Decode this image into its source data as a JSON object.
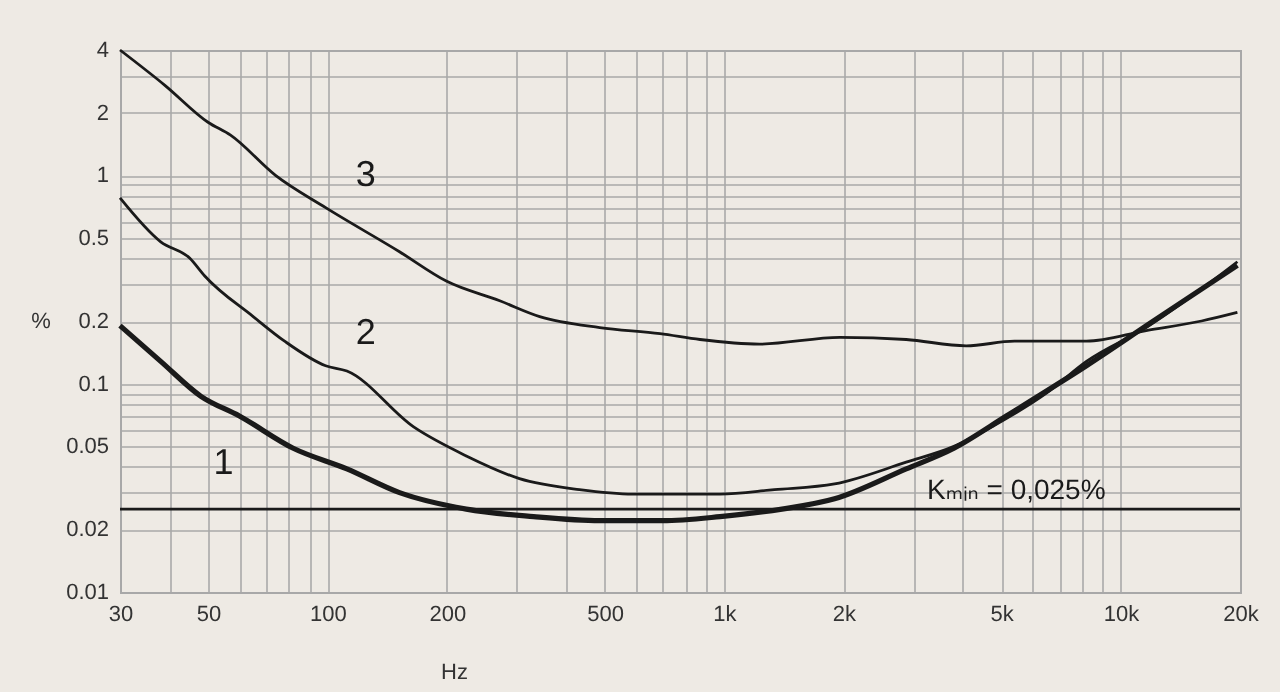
{
  "chart_data": {
    "type": "line",
    "xlabel": "Hz",
    "ylabel": "%",
    "log": "xy",
    "grid": true,
    "marker": "none",
    "line_style": "solid",
    "xlim": [
      30,
      20000
    ],
    "ylim": [
      0.01,
      4
    ],
    "xticks": [
      30,
      {
        "value": 40,
        "label": null
      },
      50,
      {
        "value": 60,
        "label": null
      },
      {
        "value": 70,
        "label": null
      },
      {
        "value": 80,
        "label": null
      },
      {
        "value": 90,
        "label": null
      },
      100,
      200,
      {
        "value": 300,
        "label": null
      },
      {
        "value": 400,
        "label": null
      },
      500,
      {
        "value": 600,
        "label": null
      },
      {
        "value": 700,
        "label": null
      },
      {
        "value": 800,
        "label": null
      },
      {
        "value": 900,
        "label": null
      },
      {
        "value": 1000,
        "label": "1k"
      },
      {
        "value": 2000,
        "label": "2k"
      },
      {
        "value": 3000,
        "label": null
      },
      {
        "value": 4000,
        "label": null
      },
      {
        "value": 5000,
        "label": "5k"
      },
      {
        "value": 6000,
        "label": null
      },
      {
        "value": 7000,
        "label": null
      },
      {
        "value": 8000,
        "label": null
      },
      {
        "value": 9000,
        "label": null
      },
      {
        "value": 10000,
        "label": "10k"
      },
      {
        "value": 20000,
        "label": "20k"
      }
    ],
    "yticks": [
      0.01,
      0.02,
      {
        "value": 0.03,
        "label": null
      },
      {
        "value": 0.04,
        "label": null
      },
      0.05,
      {
        "value": 0.06,
        "label": null
      },
      {
        "value": 0.07,
        "label": null
      },
      {
        "value": 0.08,
        "label": null
      },
      {
        "value": 0.09,
        "label": null
      },
      0.1,
      0.2,
      {
        "value": 0.3,
        "label": null
      },
      {
        "value": 0.4,
        "label": null
      },
      0.5,
      {
        "value": 0.6,
        "label": null
      },
      {
        "value": 0.7,
        "label": null
      },
      {
        "value": 0.8,
        "label": null
      },
      {
        "value": 0.9,
        "label": null
      },
      1,
      2,
      {
        "value": 3,
        "label": null
      },
      4
    ],
    "series": [
      {
        "name": "1",
        "color": "#1a1a1a",
        "x": [
          30,
          38,
          48,
          60,
          82,
          112,
          152,
          224,
          331,
          486,
          700,
          977,
          1400,
          1900,
          2880,
          3800,
          5150,
          8200,
          12000,
          19700
        ],
        "values": [
          0.19,
          0.128,
          0.087,
          0.07,
          0.049,
          0.039,
          0.03,
          0.025,
          0.023,
          0.022,
          0.022,
          0.023,
          0.025,
          0.028,
          0.039,
          0.049,
          0.07,
          0.122,
          0.198,
          0.37
        ]
      },
      {
        "name": "2",
        "color": "#1a1a1a",
        "x": [
          30,
          38,
          45,
          49,
          65,
          78,
          99,
          112,
          165,
          224,
          305,
          432,
          590,
          977,
          1340,
          1900,
          2880,
          3800,
          4800,
          6500,
          8200,
          11600,
          19700
        ],
        "values": [
          0.78,
          0.48,
          0.4,
          0.33,
          0.21,
          0.16,
          0.122,
          0.115,
          0.062,
          0.045,
          0.035,
          0.031,
          0.0295,
          0.0295,
          0.031,
          0.033,
          0.042,
          0.05,
          0.063,
          0.09,
          0.128,
          0.186,
          0.385
        ]
      },
      {
        "name": "3",
        "color": "#1a1a1a",
        "x": [
          30,
          39,
          50,
          57,
          74,
          99,
          152,
          200,
          272,
          343,
          486,
          690,
          870,
          1230,
          1960,
          2880,
          4080,
          5400,
          8200,
          11600,
          16000,
          19700
        ],
        "values": [
          4,
          2.7,
          1.8,
          1.56,
          1,
          0.7,
          0.43,
          0.31,
          0.25,
          0.21,
          0.186,
          0.174,
          0.163,
          0.155,
          0.167,
          0.163,
          0.152,
          0.16,
          0.16,
          0.18,
          0.2,
          0.22
        ]
      }
    ],
    "ref_lines": [
      {
        "axis": "y",
        "value": 0.025,
        "label": "Kₘᵢₙ = 0,025%",
        "color": "#1a1a1a"
      }
    ]
  }
}
